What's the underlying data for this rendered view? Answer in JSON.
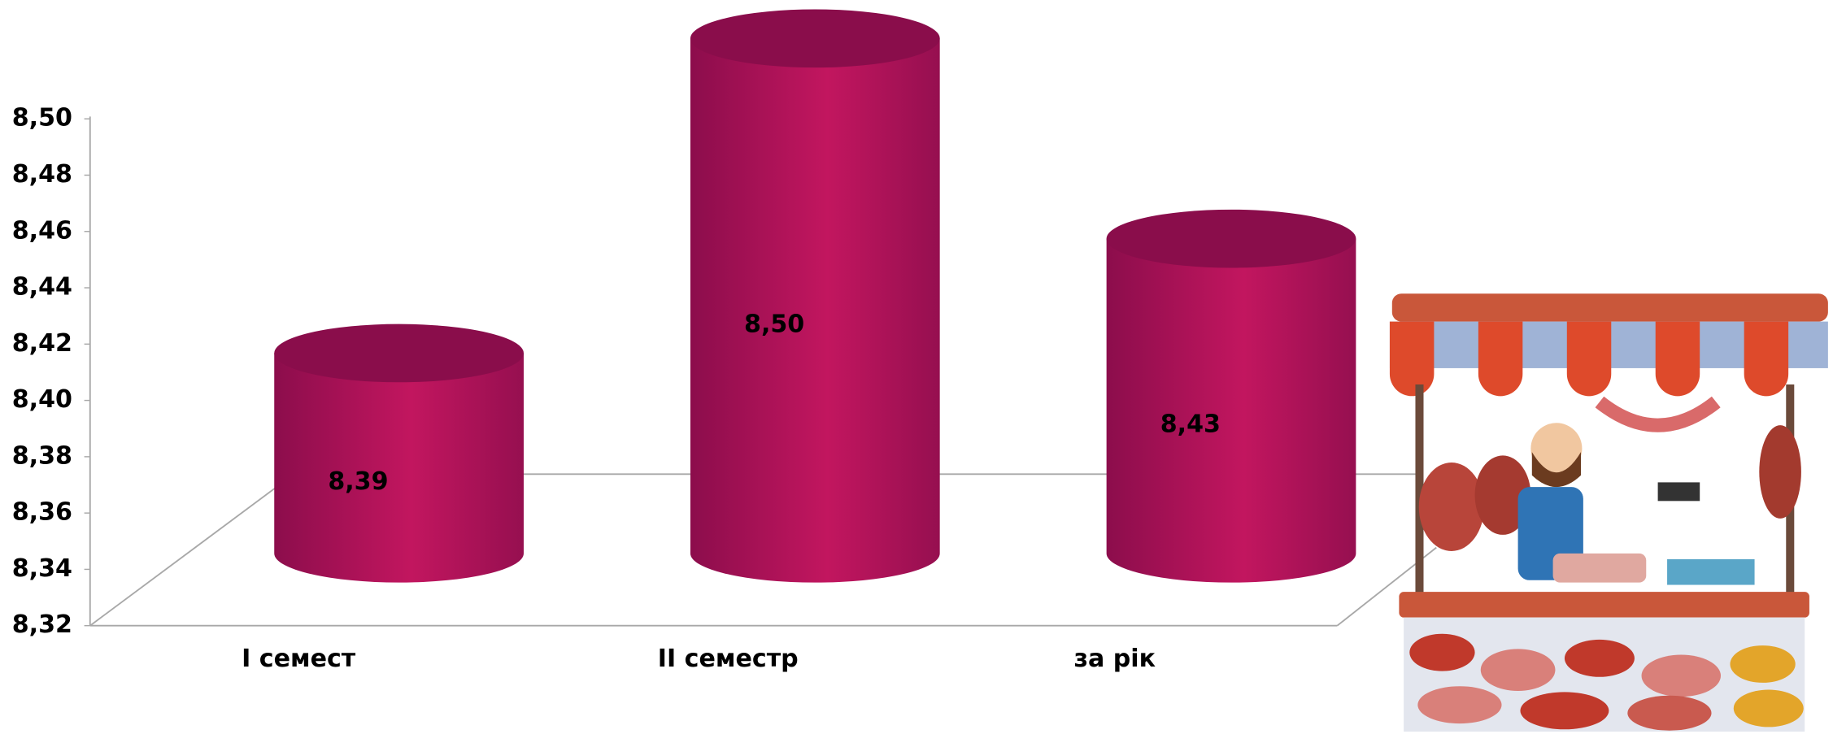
{
  "chart_data": {
    "type": "bar",
    "categories": [
      "I семест",
      "II семестр",
      "за рік"
    ],
    "values": [
      8.39,
      8.5,
      8.43
    ],
    "value_labels": [
      "8,39",
      "8,50",
      "8,43"
    ],
    "color": "#b5135f",
    "ylim": [
      8.32,
      8.5
    ],
    "yticks": [
      {
        "value": 8.32,
        "label": "8,32"
      },
      {
        "value": 8.34,
        "label": "8,34"
      },
      {
        "value": 8.36,
        "label": "8,36"
      },
      {
        "value": 8.38,
        "label": "8,38"
      },
      {
        "value": 8.4,
        "label": "8,40"
      },
      {
        "value": 8.42,
        "label": "8,42"
      },
      {
        "value": 8.44,
        "label": "8,44"
      },
      {
        "value": 8.46,
        "label": "8,46"
      },
      {
        "value": 8.48,
        "label": "8,48"
      },
      {
        "value": 8.5,
        "label": "8,50"
      }
    ]
  }
}
